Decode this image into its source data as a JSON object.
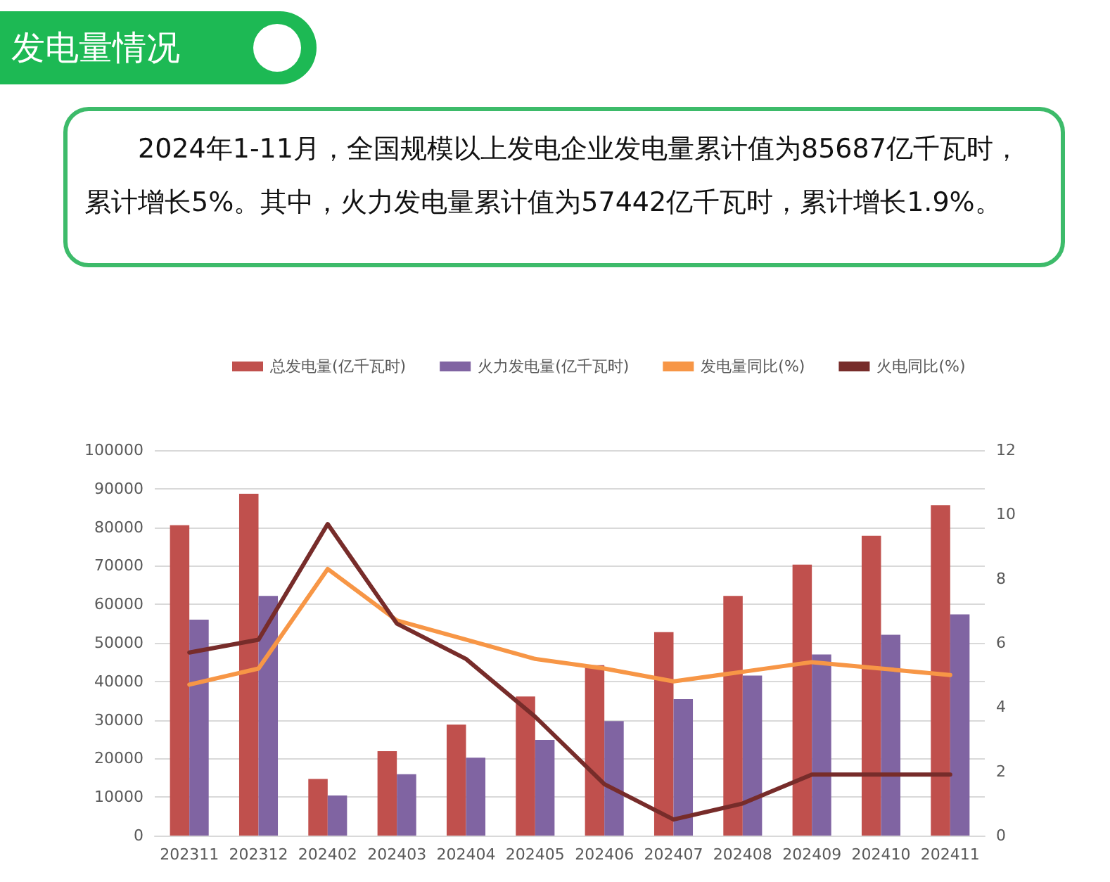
{
  "chart_data": {
    "type": "bar",
    "title": "发电量情况",
    "subtitle": "2024年1-11月，全国规模以上发电企业发电量累计值为85687亿千瓦时，累计增长5%。其中，火力发电量累计值为57442亿千瓦时，累计增长1.9%。",
    "categories": [
      "202311",
      "202312",
      "202402",
      "202403",
      "202404",
      "202405",
      "202406",
      "202407",
      "202408",
      "202409",
      "202410",
      "202411"
    ],
    "series": [
      {
        "name": "总发电量(亿千瓦时)",
        "color": "#c0504d",
        "values": [
          80500,
          88700,
          14700,
          21900,
          28800,
          36100,
          44200,
          52800,
          62200,
          70300,
          77800,
          85700
        ]
      },
      {
        "name": "火力发电量(亿千瓦时)",
        "color": "#8064a2",
        "values": [
          56000,
          62200,
          10400,
          15900,
          20200,
          24800,
          29700,
          35400,
          41500,
          47000,
          52100,
          57400
        ]
      },
      {
        "name": "发电量同比(%)",
        "type": "line",
        "axis": "y2",
        "color": "#f79646",
        "values": [
          4.7,
          5.2,
          8.3,
          6.7,
          6.1,
          5.5,
          5.2,
          4.8,
          5.1,
          5.4,
          5.2,
          5.0
        ]
      },
      {
        "name": "火电同比(%)",
        "type": "line",
        "axis": "y2",
        "color": "#772c2a",
        "values": [
          5.7,
          6.1,
          9.7,
          6.6,
          5.5,
          3.7,
          1.6,
          0.5,
          1.0,
          1.9,
          1.9,
          1.9
        ]
      }
    ],
    "ylim": [
      0,
      100000
    ],
    "yticks": [
      0,
      10000,
      20000,
      30000,
      40000,
      50000,
      60000,
      70000,
      80000,
      90000,
      100000
    ],
    "y2lim": [
      0,
      12
    ],
    "y2ticks": [
      0,
      2,
      4,
      6,
      8,
      10,
      12
    ],
    "grid": "y",
    "legend": "top",
    "marker": "none",
    "line_style": "solid"
  }
}
